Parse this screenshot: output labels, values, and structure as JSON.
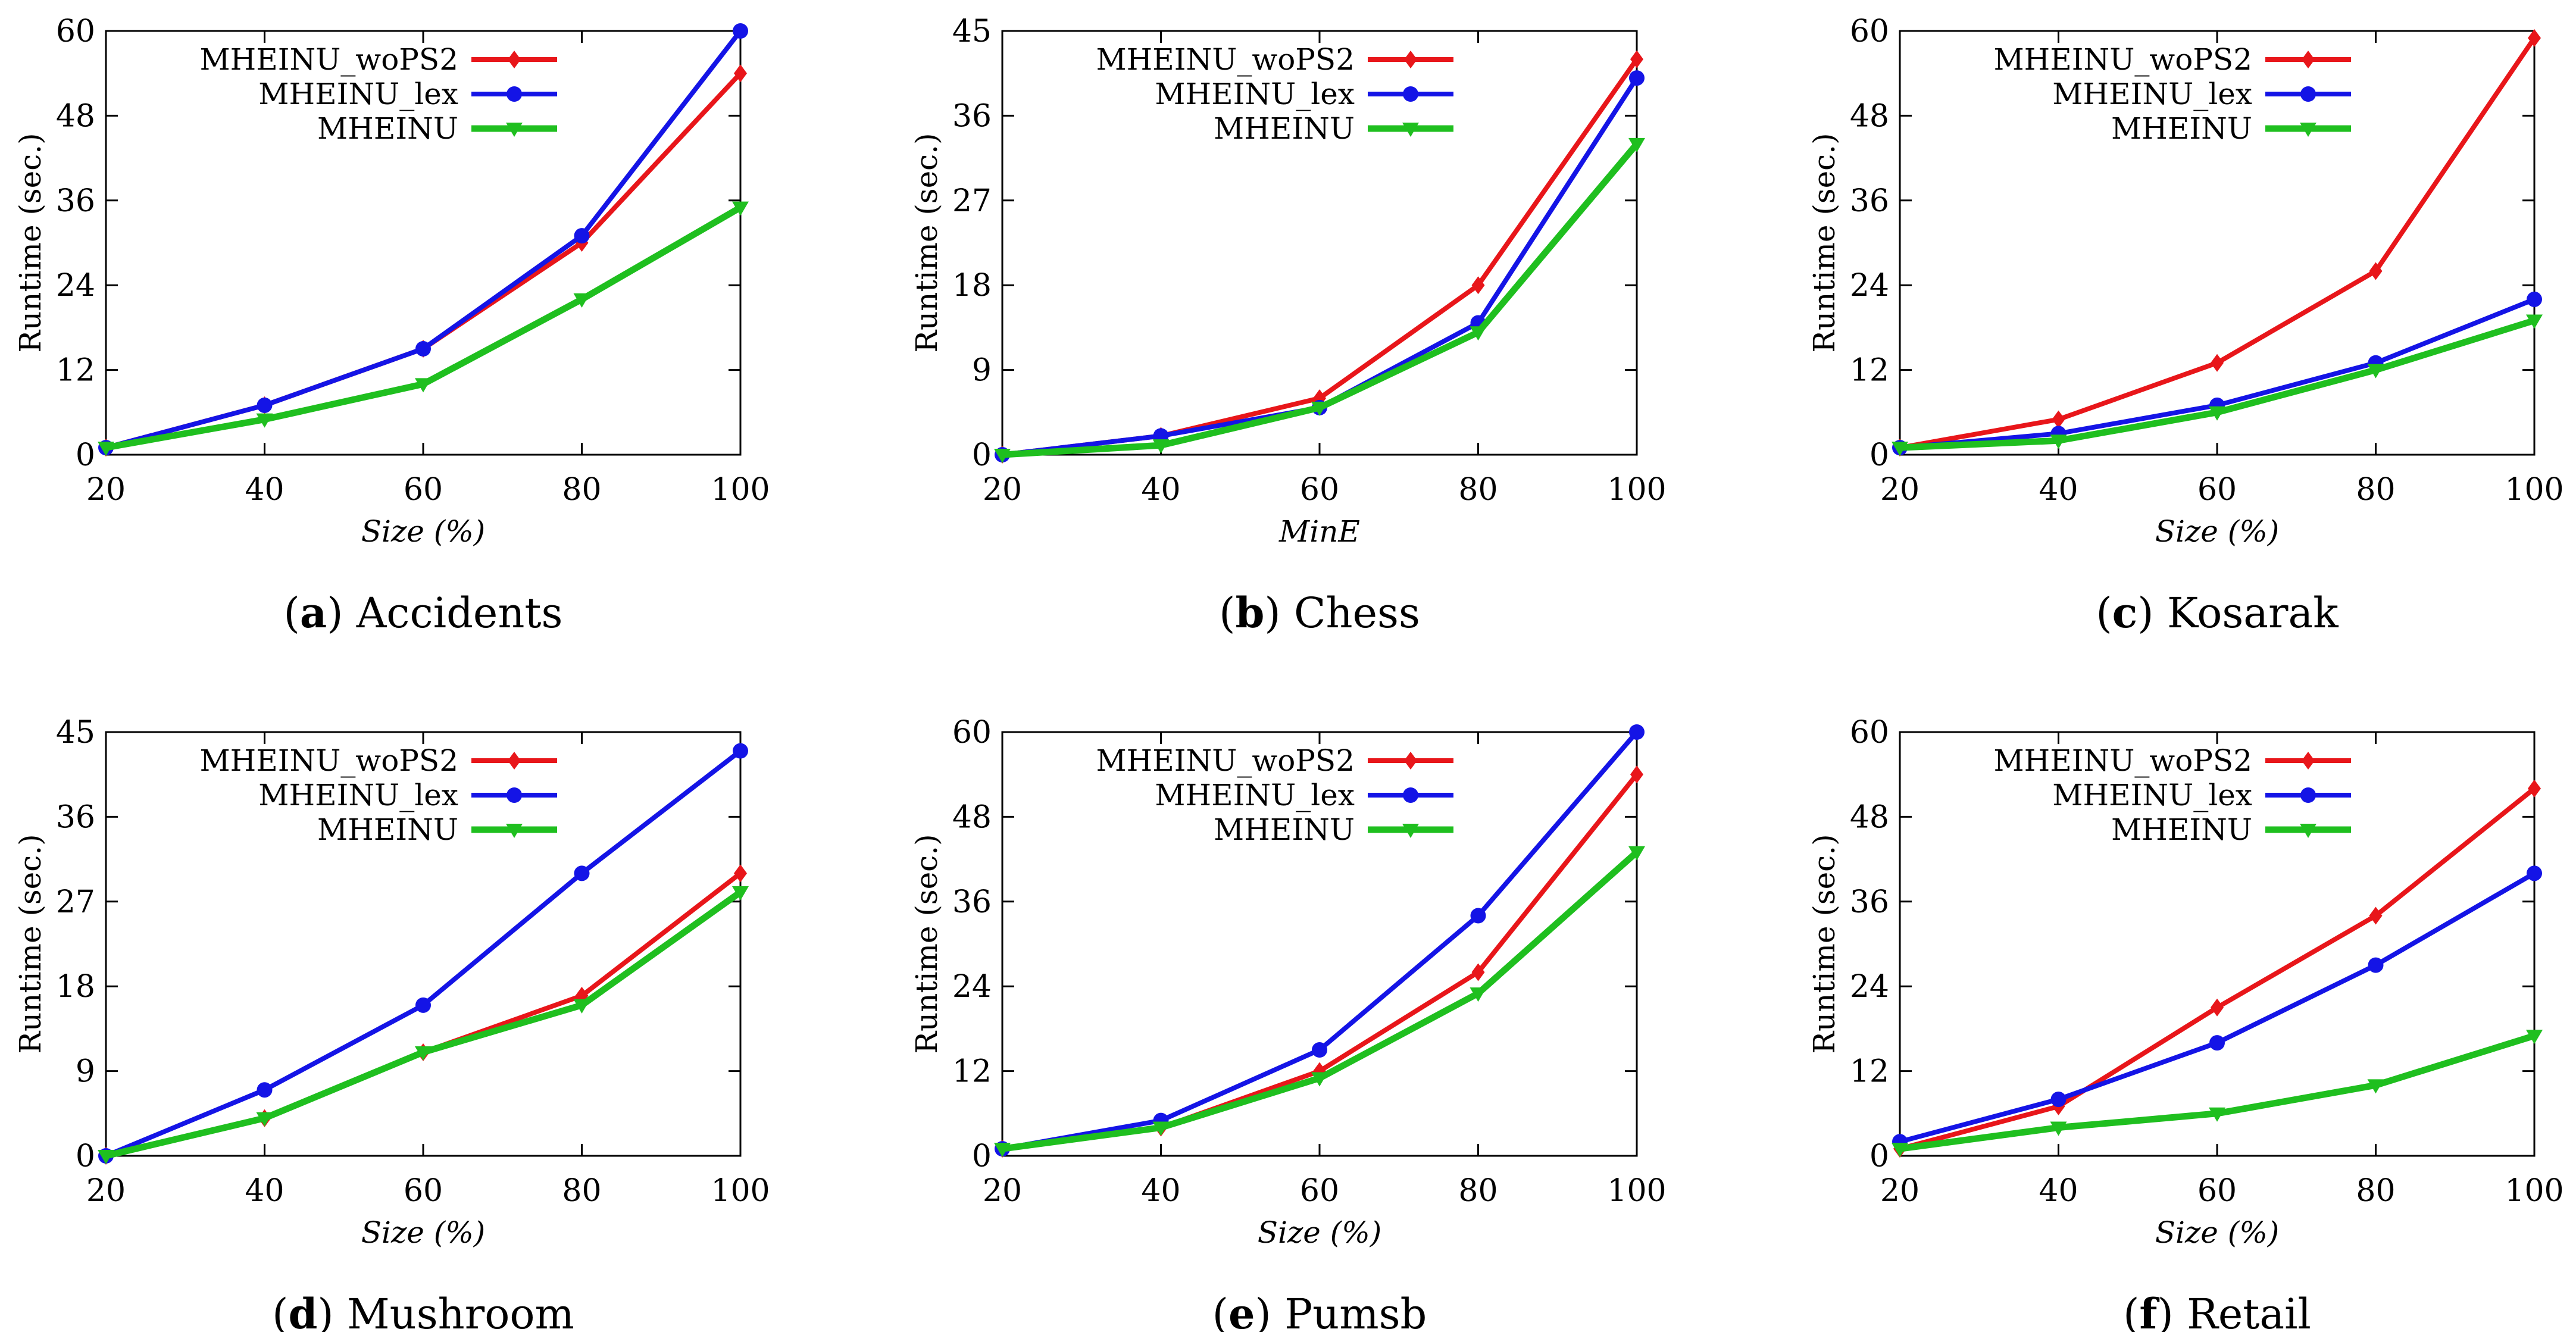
{
  "chart_data": [
    {
      "type": "line",
      "caption_letter": "a",
      "caption_text": "Accidents",
      "xlabel": "Size (%)",
      "ylabel": "Runtime (sec.)",
      "x": [
        20,
        40,
        60,
        80,
        100
      ],
      "xticks": [
        20,
        40,
        60,
        80,
        100
      ],
      "ylim": [
        0,
        60
      ],
      "yticks": [
        0,
        12,
        24,
        36,
        48,
        60
      ],
      "legend_position": "top-left",
      "series": [
        {
          "name": "MHEINU_woPS2",
          "color": "#e8161a",
          "marker": "diamond",
          "values": [
            1,
            7,
            15,
            30,
            54
          ]
        },
        {
          "name": "MHEINU_lex",
          "color": "#1414e6",
          "marker": "circle",
          "values": [
            1,
            7,
            15,
            31,
            60
          ]
        },
        {
          "name": "MHEINU",
          "color": "#1fbf1f",
          "marker": "triangle-down",
          "values": [
            1,
            5,
            10,
            22,
            35
          ]
        }
      ]
    },
    {
      "type": "line",
      "caption_letter": "b",
      "caption_text": "Chess",
      "xlabel": "MinE",
      "ylabel": "Runtime (sec.)",
      "x": [
        20,
        40,
        60,
        80,
        100
      ],
      "xticks": [
        20,
        40,
        60,
        80,
        100
      ],
      "ylim": [
        0,
        45
      ],
      "yticks": [
        0,
        9,
        18,
        27,
        36,
        45
      ],
      "legend_position": "top-left",
      "series": [
        {
          "name": "MHEINU_woPS2",
          "color": "#e8161a",
          "marker": "diamond",
          "values": [
            0,
            2,
            6,
            18,
            42
          ]
        },
        {
          "name": "MHEINU_lex",
          "color": "#1414e6",
          "marker": "circle",
          "values": [
            0,
            2,
            5,
            14,
            40
          ]
        },
        {
          "name": "MHEINU",
          "color": "#1fbf1f",
          "marker": "triangle-down",
          "values": [
            0,
            1,
            5,
            13,
            33
          ]
        }
      ]
    },
    {
      "type": "line",
      "caption_letter": "c",
      "caption_text": "Kosarak",
      "xlabel": "Size (%)",
      "ylabel": "Runtime (sec.)",
      "x": [
        20,
        40,
        60,
        80,
        100
      ],
      "xticks": [
        20,
        40,
        60,
        80,
        100
      ],
      "ylim": [
        0,
        60
      ],
      "yticks": [
        0,
        12,
        24,
        36,
        48,
        60
      ],
      "legend_position": "top-left",
      "series": [
        {
          "name": "MHEINU_woPS2",
          "color": "#e8161a",
          "marker": "diamond",
          "values": [
            1,
            5,
            13,
            26,
            59
          ]
        },
        {
          "name": "MHEINU_lex",
          "color": "#1414e6",
          "marker": "circle",
          "values": [
            1,
            3,
            7,
            13,
            22
          ]
        },
        {
          "name": "MHEINU",
          "color": "#1fbf1f",
          "marker": "triangle-down",
          "values": [
            1,
            2,
            6,
            12,
            19
          ]
        }
      ]
    },
    {
      "type": "line",
      "caption_letter": "d",
      "caption_text": "Mushroom",
      "xlabel": "Size (%)",
      "ylabel": "Runtime (sec.)",
      "x": [
        20,
        40,
        60,
        80,
        100
      ],
      "xticks": [
        20,
        40,
        60,
        80,
        100
      ],
      "ylim": [
        0,
        45
      ],
      "yticks": [
        0,
        9,
        18,
        27,
        36,
        45
      ],
      "legend_position": "top-left",
      "series": [
        {
          "name": "MHEINU_woPS2",
          "color": "#e8161a",
          "marker": "diamond",
          "values": [
            0,
            4,
            11,
            17,
            30
          ]
        },
        {
          "name": "MHEINU_lex",
          "color": "#1414e6",
          "marker": "circle",
          "values": [
            0,
            7,
            16,
            30,
            43
          ]
        },
        {
          "name": "MHEINU",
          "color": "#1fbf1f",
          "marker": "triangle-down",
          "values": [
            0,
            4,
            11,
            16,
            28
          ]
        }
      ]
    },
    {
      "type": "line",
      "caption_letter": "e",
      "caption_text": "Pumsb",
      "xlabel": "Size (%)",
      "ylabel": "Runtime (sec.)",
      "x": [
        20,
        40,
        60,
        80,
        100
      ],
      "xticks": [
        20,
        40,
        60,
        80,
        100
      ],
      "ylim": [
        0,
        60
      ],
      "yticks": [
        0,
        12,
        24,
        36,
        48,
        60
      ],
      "legend_position": "top-left",
      "series": [
        {
          "name": "MHEINU_woPS2",
          "color": "#e8161a",
          "marker": "diamond",
          "values": [
            1,
            4,
            12,
            26,
            54
          ]
        },
        {
          "name": "MHEINU_lex",
          "color": "#1414e6",
          "marker": "circle",
          "values": [
            1,
            5,
            15,
            34,
            60
          ]
        },
        {
          "name": "MHEINU",
          "color": "#1fbf1f",
          "marker": "triangle-down",
          "values": [
            1,
            4,
            11,
            23,
            43
          ]
        }
      ]
    },
    {
      "type": "line",
      "caption_letter": "f",
      "caption_text": "Retail",
      "xlabel": "Size (%)",
      "ylabel": "Runtime (sec.)",
      "x": [
        20,
        40,
        60,
        80,
        100
      ],
      "xticks": [
        20,
        40,
        60,
        80,
        100
      ],
      "ylim": [
        0,
        60
      ],
      "yticks": [
        0,
        12,
        24,
        36,
        48,
        60
      ],
      "legend_position": "top-left",
      "series": [
        {
          "name": "MHEINU_woPS2",
          "color": "#e8161a",
          "marker": "diamond",
          "values": [
            1,
            7,
            21,
            34,
            52
          ]
        },
        {
          "name": "MHEINU_lex",
          "color": "#1414e6",
          "marker": "circle",
          "values": [
            2,
            8,
            16,
            27,
            40
          ]
        },
        {
          "name": "MHEINU",
          "color": "#1fbf1f",
          "marker": "triangle-down",
          "values": [
            1,
            4,
            6,
            10,
            17
          ]
        }
      ]
    }
  ]
}
